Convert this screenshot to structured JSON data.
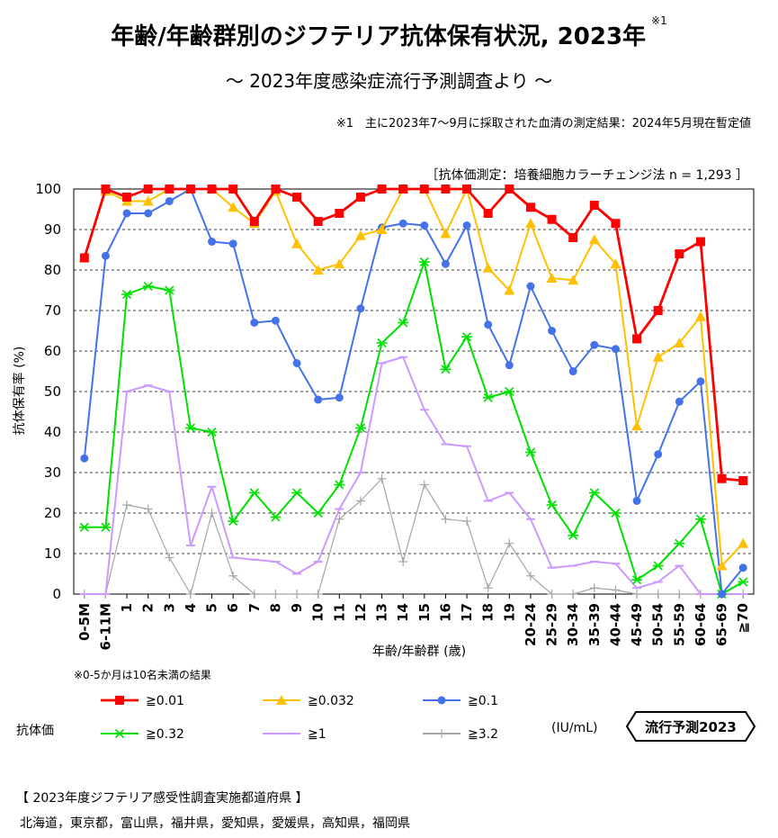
{
  "title": "年齢/年齢群別のジフテリア抗体保有状況, 2023年",
  "title_note": "※1",
  "subtitle": "～ 2023年度感染症流行予測調査より ～",
  "footnote": "※1　主に2023年7～9月に採取された血清の測定結果：2024年5月現在暫定値",
  "method": "［抗体価測定：培養細胞カラーチェンジ法 n = 1,293 ］",
  "age_note": "※0-5か月は10名未満の結果",
  "legend_title": "抗体価",
  "units": "(IU/mL)",
  "badge": "流行予測2023",
  "prefectures_title": "【 2023年度ジフテリア感受性調査実施都道府県 】",
  "prefectures": "北海道，東京都，富山県，福井県，愛知県，愛媛県，高知県，福岡県",
  "chart_data": {
    "type": "line",
    "title": "年齢/年齢群別のジフテリア抗体保有状況, 2023年",
    "xlabel": "年齢/年齢群 (歳)",
    "ylabel": "抗体保有率 (%)",
    "ylim": [
      0,
      100
    ],
    "yticks": [
      0,
      10,
      20,
      30,
      40,
      50,
      60,
      70,
      80,
      90,
      100
    ],
    "grid": true,
    "categories": [
      "0-5M",
      "6-11M",
      "1",
      "2",
      "3",
      "4",
      "5",
      "6",
      "7",
      "8",
      "9",
      "10",
      "11",
      "12",
      "13",
      "14",
      "15",
      "16",
      "17",
      "18",
      "19",
      "20-24",
      "25-29",
      "30-34",
      "35-39",
      "40-44",
      "45-49",
      "50-54",
      "55-59",
      "60-64",
      "65-69",
      "≧70"
    ],
    "series": [
      {
        "name": "≧0.01",
        "color": "#ff0000",
        "marker": "square",
        "values": [
          83,
          100,
          98,
          100,
          100,
          100,
          100,
          100,
          92,
          100,
          98,
          92,
          94,
          98,
          100,
          100,
          100,
          100,
          100,
          94,
          100,
          95.5,
          92.5,
          88,
          96,
          91.5,
          63,
          70,
          84,
          87,
          28.5,
          28
        ]
      },
      {
        "name": "≧0.032",
        "color": "#ffc000",
        "marker": "triangle",
        "values": [
          83,
          99.5,
          97,
          97,
          100,
          100,
          100,
          95.5,
          91.5,
          99.5,
          86.5,
          80,
          81.5,
          88.5,
          90,
          100,
          100,
          89,
          100,
          80.5,
          75,
          91.5,
          78,
          77.5,
          87.5,
          81.5,
          41.5,
          58.5,
          62,
          68.5,
          7,
          12.5
        ]
      },
      {
        "name": "≧0.1",
        "color": "#4472e8",
        "marker": "circle",
        "values": [
          33.5,
          83.5,
          94,
          94,
          97,
          100,
          87,
          86.5,
          67,
          67.5,
          57,
          48,
          48.5,
          70.5,
          90.5,
          91.5,
          91,
          81.5,
          91,
          66.5,
          56.5,
          76,
          65,
          55,
          61.5,
          60.5,
          23,
          34.5,
          47.5,
          52.5,
          0,
          6.5
        ]
      },
      {
        "name": "≧0.32",
        "color": "#00e000",
        "marker": "asterisk",
        "values": [
          16.5,
          16.5,
          74,
          76,
          75,
          41,
          40,
          18,
          25,
          19,
          25,
          20,
          27,
          41,
          62,
          67,
          82,
          55.5,
          63.5,
          48.5,
          50,
          35,
          22,
          14.5,
          25,
          20,
          3.5,
          7,
          12.5,
          18.5,
          0,
          3
        ]
      },
      {
        "name": "≧1",
        "color": "#cc99ff",
        "marker": "dash",
        "values": [
          0,
          0,
          50,
          51.5,
          50,
          12,
          26.5,
          9,
          8.5,
          8,
          5,
          8,
          21,
          30,
          57,
          58.5,
          45.5,
          37,
          36.5,
          23,
          25,
          18.5,
          6.5,
          7,
          8,
          7.5,
          1.5,
          3,
          7,
          0,
          0,
          0
        ]
      },
      {
        "name": "≧3.2",
        "color": "#a6a6a6",
        "marker": "plus",
        "values": [
          0,
          0,
          22,
          21,
          9,
          0,
          20,
          4.5,
          0,
          0,
          0,
          0,
          18.5,
          23,
          28.5,
          8,
          27,
          18.5,
          18,
          1.5,
          12.5,
          4.5,
          0,
          0,
          1.5,
          1,
          0,
          0,
          0,
          0,
          0,
          0
        ]
      }
    ]
  }
}
